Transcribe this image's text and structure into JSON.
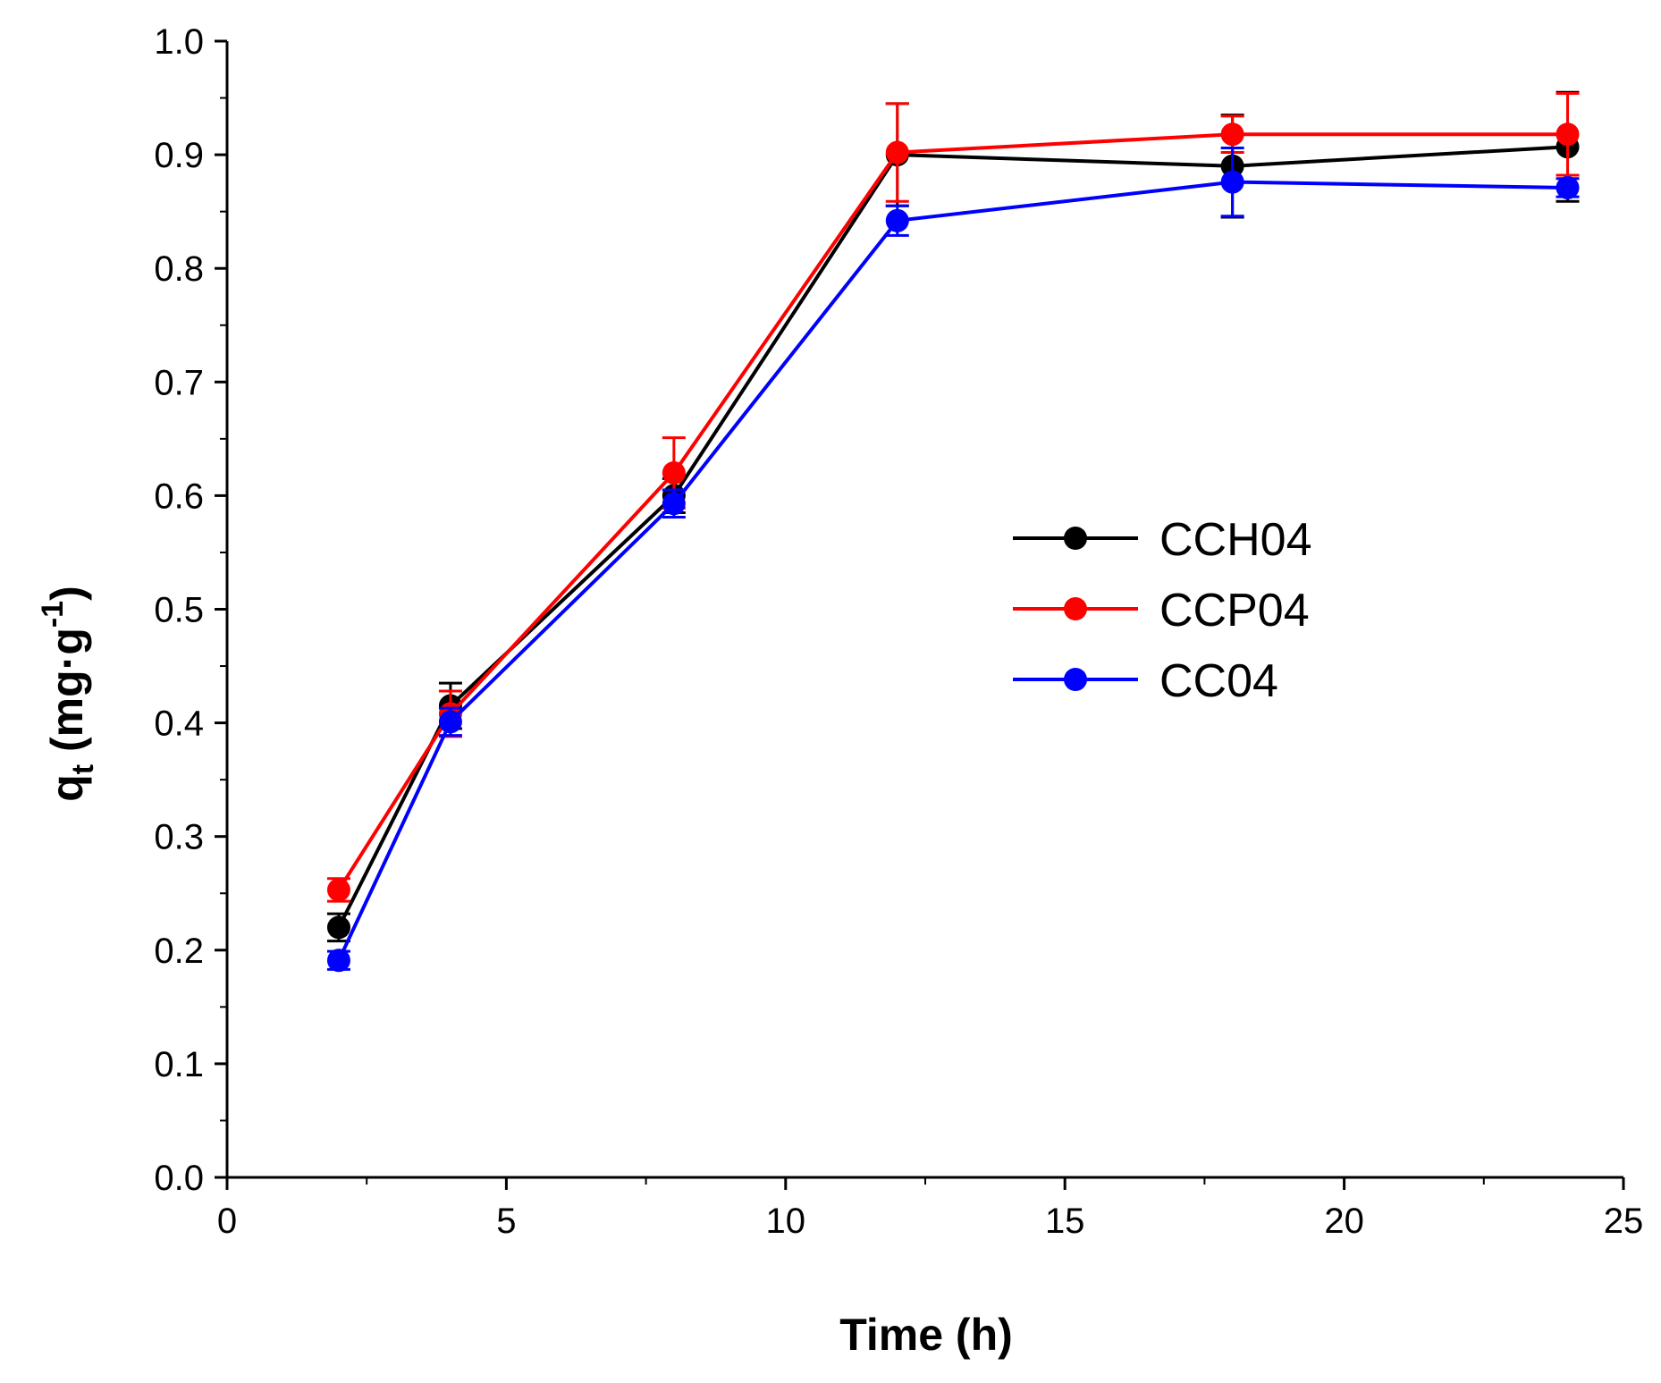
{
  "chart_data": {
    "type": "line",
    "xlabel": "Time (h)",
    "ylabel_main": "q",
    "ylabel_sub": "t",
    "ylabel_unit": " (mg·g",
    "ylabel_sup": "-1",
    "ylabel_close": ")",
    "xlim": [
      0,
      25
    ],
    "ylim": [
      0.0,
      1.0
    ],
    "x_ticks": [
      0,
      5,
      10,
      15,
      20,
      25
    ],
    "x_tick_labels": [
      "0",
      "5",
      "10",
      "15",
      "20",
      "25"
    ],
    "y_ticks": [
      0.0,
      0.1,
      0.2,
      0.3,
      0.4,
      0.5,
      0.6,
      0.7,
      0.8,
      0.9,
      1.0
    ],
    "y_tick_labels": [
      "0.0",
      "0.1",
      "0.2",
      "0.3",
      "0.4",
      "0.5",
      "0.6",
      "0.7",
      "0.8",
      "0.9",
      "1.0"
    ],
    "legend_position": "center-right",
    "x": [
      2,
      4,
      8,
      12,
      18,
      24
    ],
    "series": [
      {
        "name": "CCH04",
        "color": "#000000",
        "values": [
          0.22,
          0.415,
          0.6,
          0.9,
          0.89,
          0.907
        ],
        "errors": [
          0.012,
          0.02,
          0.015,
          0.045,
          0.045,
          0.048
        ]
      },
      {
        "name": "CCP04",
        "color": "#ff0000",
        "values": [
          0.253,
          0.408,
          0.62,
          0.902,
          0.918,
          0.918
        ],
        "errors": [
          0.01,
          0.02,
          0.031,
          0.043,
          0.016,
          0.036
        ]
      },
      {
        "name": "CC04",
        "color": "#0000ff",
        "values": [
          0.191,
          0.401,
          0.593,
          0.842,
          0.876,
          0.871
        ],
        "errors": [
          0.008,
          0.012,
          0.012,
          0.013,
          0.03,
          0.008
        ]
      }
    ]
  }
}
